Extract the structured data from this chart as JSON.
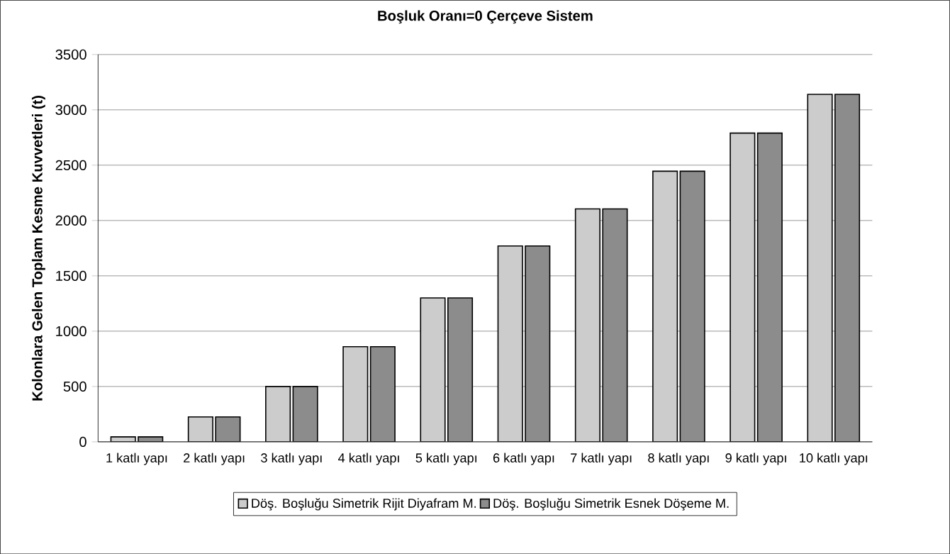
{
  "chart_data": {
    "type": "bar",
    "title": "Boşluk Oranı=0 Çerçeve Sistem",
    "ylabel": "Kolonlara Gelen Toplam Kesme Kuvvetleri (t)",
    "categories": [
      "1 katlı yapı",
      "2 katlı yapı",
      "3 katlı yapı",
      "4 katlı yapı",
      "5 katlı yapı",
      "6 katlı yapı",
      "7 katlı yapı",
      "8 katlı yapı",
      "9 katlı yapı",
      "10 katlı yapı"
    ],
    "series": [
      {
        "name": "Döş. Boşluğu Simetrik Rijit Diyafram M.",
        "color": "#cccccc",
        "values": [
          45,
          225,
          500,
          860,
          1300,
          1770,
          2105,
          2445,
          2790,
          3140
        ]
      },
      {
        "name": "Döş. Boşluğu Simetrik Esnek Döşeme M.",
        "color": "#8c8c8c",
        "values": [
          45,
          225,
          500,
          860,
          1300,
          1770,
          2105,
          2445,
          2790,
          3140
        ]
      }
    ],
    "ylim": [
      0,
      3500
    ],
    "yticks": [
      0,
      500,
      1000,
      1500,
      2000,
      2500,
      3000,
      3500
    ],
    "grid": "y",
    "legend": "bottom"
  }
}
